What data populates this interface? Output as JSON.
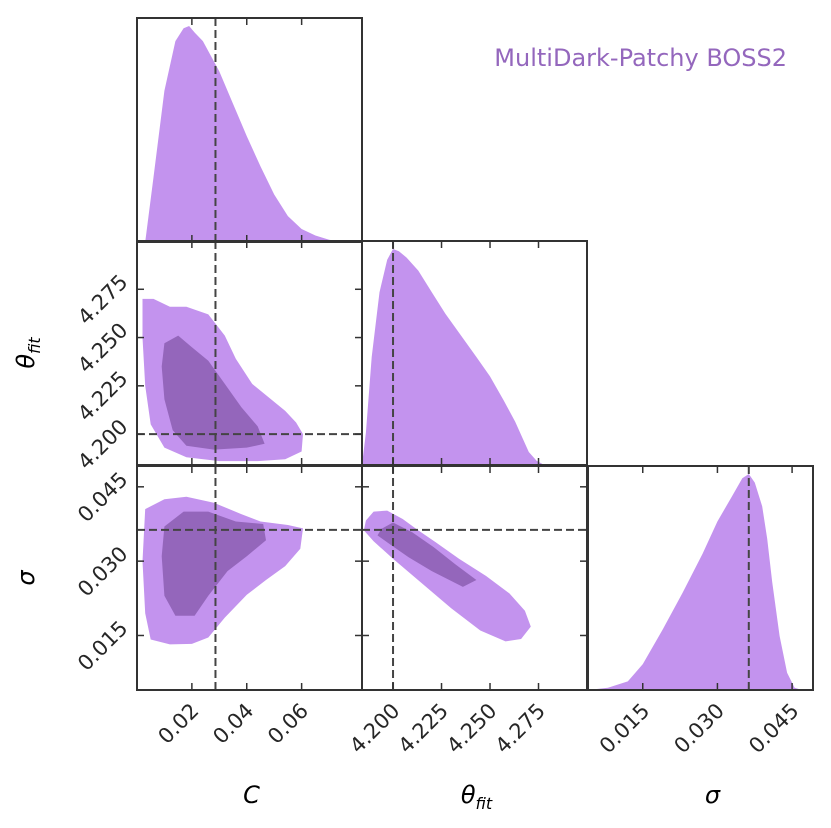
{
  "chart_data": {
    "type": "corner",
    "legend": {
      "label": "MultiDark-Patchy BOSS2",
      "placement": "top-right",
      "color": "#9467bd"
    },
    "colors": {
      "outer_contour": "#c393ee",
      "inner_contour": "#9466bb",
      "axis": "#333333",
      "marker_line": "#444444"
    },
    "parameters": [
      {
        "key": "C",
        "label": "C",
        "label_sub": "",
        "range": [
          0.0,
          0.082
        ],
        "ticks": [
          0.02,
          0.04,
          0.06
        ],
        "tick_labels": [
          "0.02",
          "0.04",
          "0.06"
        ],
        "marker": 0.0286
      },
      {
        "key": "theta_fit",
        "label": "θ",
        "label_sub": "fit",
        "range": [
          4.184,
          4.3
        ]
      },
      {
        "key": "sigma",
        "label": "σ",
        "label_sub": "",
        "range": [
          0.004,
          0.0492
        ],
        "ticks": [
          0.015,
          0.03,
          0.045
        ],
        "tick_labels": [
          "0.015",
          "0.030",
          "0.045"
        ],
        "marker": 0.0363
      }
    ],
    "theta_fit_axis": {
      "x_ticks": [
        4.2,
        4.225,
        4.25,
        4.275
      ],
      "x_tick_labels": [
        "4.200",
        "4.225",
        "4.250",
        "4.275"
      ],
      "y_ticks": [
        4.2,
        4.225,
        4.25,
        4.275
      ],
      "y_tick_labels": [
        "4.200",
        "4.225",
        "4.250",
        "4.275"
      ],
      "marker": 4.2
    },
    "marginals": {
      "C": {
        "x": [
          0.003,
          0.006,
          0.01,
          0.014,
          0.017,
          0.019,
          0.021,
          0.024,
          0.027,
          0.03,
          0.035,
          0.04,
          0.045,
          0.05,
          0.055,
          0.06,
          0.065,
          0.07,
          0.075,
          0.082
        ],
        "density": [
          0.0,
          0.3,
          0.7,
          0.93,
          0.99,
          1.0,
          0.97,
          0.93,
          0.86,
          0.79,
          0.64,
          0.49,
          0.35,
          0.22,
          0.12,
          0.06,
          0.03,
          0.01,
          0.0,
          0.0
        ]
      },
      "theta_fit": {
        "x": [
          4.184,
          4.186,
          4.189,
          4.193,
          4.197,
          4.2,
          4.203,
          4.207,
          4.213,
          4.22,
          4.227,
          4.235,
          4.243,
          4.25,
          4.257,
          4.263,
          4.267,
          4.27,
          4.274,
          4.278,
          4.285
        ],
        "density": [
          0.0,
          0.15,
          0.5,
          0.8,
          0.95,
          1.0,
          0.99,
          0.96,
          0.9,
          0.8,
          0.7,
          0.6,
          0.5,
          0.41,
          0.3,
          0.2,
          0.12,
          0.06,
          0.02,
          0.0,
          0.0
        ]
      },
      "sigma": {
        "x": [
          0.004,
          0.008,
          0.012,
          0.015,
          0.019,
          0.023,
          0.027,
          0.03,
          0.033,
          0.035,
          0.0363,
          0.0375,
          0.039,
          0.04,
          0.041,
          0.0425,
          0.044,
          0.0455,
          0.047
        ],
        "density": [
          0.0,
          0.01,
          0.04,
          0.12,
          0.28,
          0.45,
          0.63,
          0.78,
          0.9,
          0.98,
          1.0,
          0.96,
          0.85,
          0.7,
          0.5,
          0.25,
          0.08,
          0.01,
          0.0
        ]
      }
    },
    "contours": {
      "theta_vs_C": {
        "outer": [
          [
            0.002,
            4.27
          ],
          [
            0.006,
            4.27
          ],
          [
            0.012,
            4.266
          ],
          [
            0.018,
            4.266
          ],
          [
            0.026,
            4.262
          ],
          [
            0.032,
            4.251
          ],
          [
            0.036,
            4.239
          ],
          [
            0.042,
            4.226
          ],
          [
            0.048,
            4.219
          ],
          [
            0.054,
            4.212
          ],
          [
            0.058,
            4.206
          ],
          [
            0.0605,
            4.2
          ],
          [
            0.06,
            4.191
          ],
          [
            0.054,
            4.187
          ],
          [
            0.044,
            4.186
          ],
          [
            0.03,
            4.186
          ],
          [
            0.018,
            4.188
          ],
          [
            0.01,
            4.193
          ],
          [
            0.005,
            4.205
          ],
          [
            0.003,
            4.225
          ],
          [
            0.002,
            4.25
          ]
        ],
        "inner": [
          [
            0.01,
            4.247
          ],
          [
            0.015,
            4.251
          ],
          [
            0.02,
            4.245
          ],
          [
            0.026,
            4.238
          ],
          [
            0.032,
            4.226
          ],
          [
            0.038,
            4.214
          ],
          [
            0.044,
            4.204
          ],
          [
            0.0465,
            4.195
          ],
          [
            0.04,
            4.193
          ],
          [
            0.028,
            4.192
          ],
          [
            0.018,
            4.194
          ],
          [
            0.013,
            4.202
          ],
          [
            0.01,
            4.218
          ],
          [
            0.009,
            4.235
          ]
        ]
      },
      "sigma_vs_C": {
        "outer": [
          [
            0.003,
            0.0405
          ],
          [
            0.01,
            0.0425
          ],
          [
            0.018,
            0.043
          ],
          [
            0.028,
            0.0418
          ],
          [
            0.038,
            0.0395
          ],
          [
            0.045,
            0.038
          ],
          [
            0.055,
            0.0373
          ],
          [
            0.0605,
            0.0366
          ],
          [
            0.0595,
            0.0325
          ],
          [
            0.054,
            0.029
          ],
          [
            0.047,
            0.0262
          ],
          [
            0.04,
            0.0232
          ],
          [
            0.032,
            0.0186
          ],
          [
            0.026,
            0.0146
          ],
          [
            0.02,
            0.0133
          ],
          [
            0.012,
            0.0132
          ],
          [
            0.005,
            0.0142
          ],
          [
            0.003,
            0.0195
          ],
          [
            0.002,
            0.03
          ]
        ],
        "inner": [
          [
            0.01,
            0.037
          ],
          [
            0.017,
            0.04
          ],
          [
            0.026,
            0.04
          ],
          [
            0.036,
            0.038
          ],
          [
            0.046,
            0.0375
          ],
          [
            0.047,
            0.0342
          ],
          [
            0.04,
            0.031
          ],
          [
            0.033,
            0.028
          ],
          [
            0.026,
            0.023
          ],
          [
            0.021,
            0.019
          ],
          [
            0.014,
            0.019
          ],
          [
            0.01,
            0.023
          ],
          [
            0.009,
            0.031
          ]
        ]
      },
      "sigma_vs_theta": {
        "outer": [
          [
            4.186,
            0.0382
          ],
          [
            4.19,
            0.04
          ],
          [
            4.197,
            0.0402
          ],
          [
            4.205,
            0.0385
          ],
          [
            4.213,
            0.0362
          ],
          [
            4.222,
            0.0338
          ],
          [
            4.234,
            0.0305
          ],
          [
            4.248,
            0.027
          ],
          [
            4.26,
            0.0235
          ],
          [
            4.268,
            0.02
          ],
          [
            4.271,
            0.0168
          ],
          [
            4.266,
            0.0143
          ],
          [
            4.258,
            0.0138
          ],
          [
            4.245,
            0.016
          ],
          [
            4.23,
            0.0205
          ],
          [
            4.215,
            0.0255
          ],
          [
            4.2,
            0.0305
          ],
          [
            4.19,
            0.034
          ],
          [
            4.185,
            0.0362
          ]
        ],
        "inner": [
          [
            4.194,
            0.0365
          ],
          [
            4.2,
            0.0378
          ],
          [
            4.21,
            0.0358
          ],
          [
            4.221,
            0.0328
          ],
          [
            4.232,
            0.0294
          ],
          [
            4.243,
            0.0262
          ],
          [
            4.236,
            0.0248
          ],
          [
            4.22,
            0.028
          ],
          [
            4.208,
            0.0308
          ],
          [
            4.198,
            0.0335
          ],
          [
            4.192,
            0.0352
          ]
        ]
      }
    }
  }
}
